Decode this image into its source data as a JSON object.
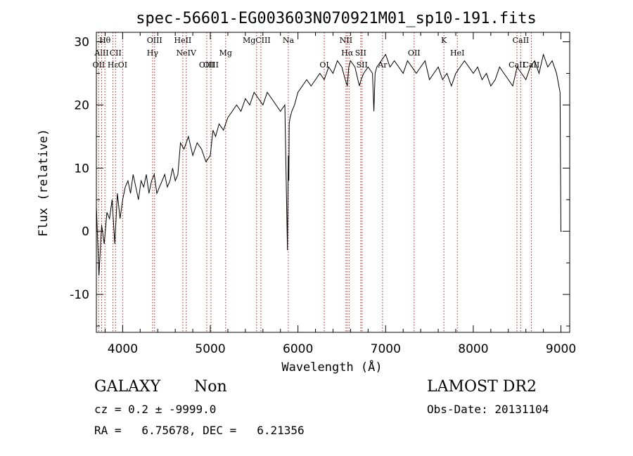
{
  "chart_data": {
    "type": "line",
    "title": "spec-56601-EG003603N070921M01_sp10-191.fits",
    "xlabel": "Wavelength (Å)",
    "ylabel": "Flux (relative)",
    "xlim": [
      3700,
      9100
    ],
    "ylim": [
      -16,
      31.5
    ],
    "xticks": [
      4000,
      5000,
      6000,
      7000,
      8000,
      9000
    ],
    "yticks": [
      -10,
      0,
      10,
      20,
      30
    ],
    "grid": false,
    "line_color": "#000000",
    "marker_color": "#b22222",
    "series": [
      {
        "x": [
          3700,
          3730,
          3760,
          3790,
          3820,
          3850,
          3880,
          3910,
          3940,
          3970,
          4000,
          4030,
          4060,
          4090,
          4120,
          4150,
          4180,
          4210,
          4240,
          4270,
          4300,
          4330,
          4360,
          4390,
          4420,
          4450,
          4480,
          4510,
          4540,
          4570,
          4600,
          4630,
          4660,
          4700,
          4750,
          4800,
          4850,
          4900,
          4950,
          5000,
          5030,
          5060,
          5100,
          5150,
          5200,
          5250,
          5300,
          5350,
          5400,
          5450,
          5500,
          5550,
          5600,
          5650,
          5700,
          5750,
          5800,
          5850,
          5880,
          5890,
          5896,
          5900,
          5910,
          5930,
          5960,
          6000,
          6050,
          6100,
          6150,
          6200,
          6250,
          6300,
          6350,
          6400,
          6450,
          6500,
          6540,
          6563,
          6580,
          6600,
          6650,
          6700,
          6720,
          6750,
          6800,
          6850,
          6866,
          6880,
          6900,
          6950,
          7000,
          7050,
          7100,
          7150,
          7200,
          7250,
          7300,
          7350,
          7400,
          7450,
          7500,
          7550,
          7600,
          7650,
          7700,
          7750,
          7800,
          7850,
          7900,
          7950,
          8000,
          8050,
          8100,
          8150,
          8200,
          8250,
          8300,
          8350,
          8400,
          8450,
          8500,
          8550,
          8600,
          8650,
          8700,
          8750,
          8800,
          8850,
          8900,
          8950,
          8990,
          9000,
          9010
        ],
        "y": [
          4,
          -7,
          1,
          -2,
          3,
          2,
          5,
          -2,
          6,
          2,
          5,
          7,
          8,
          6,
          9,
          7,
          5,
          8,
          7,
          9,
          6,
          8,
          9,
          6,
          7,
          8,
          9,
          7,
          8,
          10,
          8,
          9,
          14,
          13,
          15,
          12,
          14,
          13,
          11,
          12,
          16,
          15,
          17,
          16,
          18,
          19,
          20,
          19,
          21,
          20,
          22,
          21,
          20,
          22,
          21,
          20,
          19,
          20,
          -3,
          12,
          8,
          17,
          18,
          19,
          20,
          22,
          23,
          24,
          23,
          24,
          25,
          24,
          26,
          25,
          27,
          26,
          24,
          23,
          26,
          27,
          26,
          23,
          24,
          25,
          26,
          25,
          19,
          25,
          26,
          27,
          28,
          26,
          27,
          26,
          25,
          27,
          26,
          25,
          26,
          27,
          24,
          25,
          26,
          24,
          25,
          23,
          25,
          26,
          27,
          26,
          25,
          26,
          24,
          25,
          23,
          24,
          26,
          25,
          24,
          23,
          26,
          25,
          24,
          26,
          27,
          25,
          28,
          26,
          27,
          25,
          22,
          0,
          0
        ]
      }
    ]
  },
  "line_markers": [
    {
      "label": "Hθ",
      "x": 3798,
      "row": 1
    },
    {
      "label": "AlII",
      "x": 3760,
      "row": 2
    },
    {
      "label": "CII",
      "x": 3919,
      "row": 2
    },
    {
      "label": "OII",
      "x": 3727,
      "row": 3
    },
    {
      "label": "Hε",
      "x": 3889,
      "row": 3
    },
    {
      "label": "OI",
      "x": 4000,
      "row": 3
    },
    {
      "label": "OIII",
      "x": 4364,
      "row": 1
    },
    {
      "label": "Hγ",
      "x": 4341,
      "row": 2
    },
    {
      "label": "HeII",
      "x": 4686,
      "row": 1
    },
    {
      "label": "NeIV",
      "x": 4725,
      "row": 2
    },
    {
      "label": "OIII",
      "x": 4959,
      "row": 3
    },
    {
      "label": "OIII",
      "x": 5007,
      "row": 3
    },
    {
      "label": "Mg",
      "x": 5175,
      "row": 2
    },
    {
      "label": "MgCIII",
      "x": 5528,
      "row": 1
    },
    {
      "label": "Na",
      "x": 5890,
      "row": 1
    },
    {
      "label": "OI",
      "x": 6300,
      "row": 3
    },
    {
      "label": "NII",
      "x": 6548,
      "row": 1
    },
    {
      "label": "Hα",
      "x": 6563,
      "row": 2
    },
    {
      "label": "SII",
      "x": 6716,
      "row": 2
    },
    {
      "label": "SII",
      "x": 6731,
      "row": 3
    },
    {
      "label": "Ar",
      "x": 6965,
      "row": 3
    },
    {
      "label": "OII",
      "x": 7325,
      "row": 2
    },
    {
      "label": "HeI",
      "x": 7818,
      "row": 2
    },
    {
      "label": "K",
      "x": 7665,
      "row": 1
    },
    {
      "label": "CaII",
      "x": 8542,
      "row": 1
    },
    {
      "label": "CaII",
      "x": 8498,
      "row": 3
    },
    {
      "label": "CaII",
      "x": 8662,
      "row": 3
    }
  ],
  "marker_lines_x": [
    3727,
    3760,
    3798,
    3889,
    3919,
    4000,
    4341,
    4364,
    4686,
    4725,
    4959,
    5007,
    5175,
    5528,
    5577,
    5890,
    6300,
    6548,
    6563,
    6583,
    6716,
    6731,
    6965,
    7325,
    7665,
    7818,
    8498,
    8542,
    8662
  ],
  "info": {
    "object_class": "GALAXY",
    "subclass": "Non",
    "survey": "LAMOST DR2",
    "cz": "cz = 0.2 ± -9999.0",
    "obs_date": "Obs-Date: 20131104",
    "radec": "RA =   6.75678, DEC =   6.21356"
  }
}
